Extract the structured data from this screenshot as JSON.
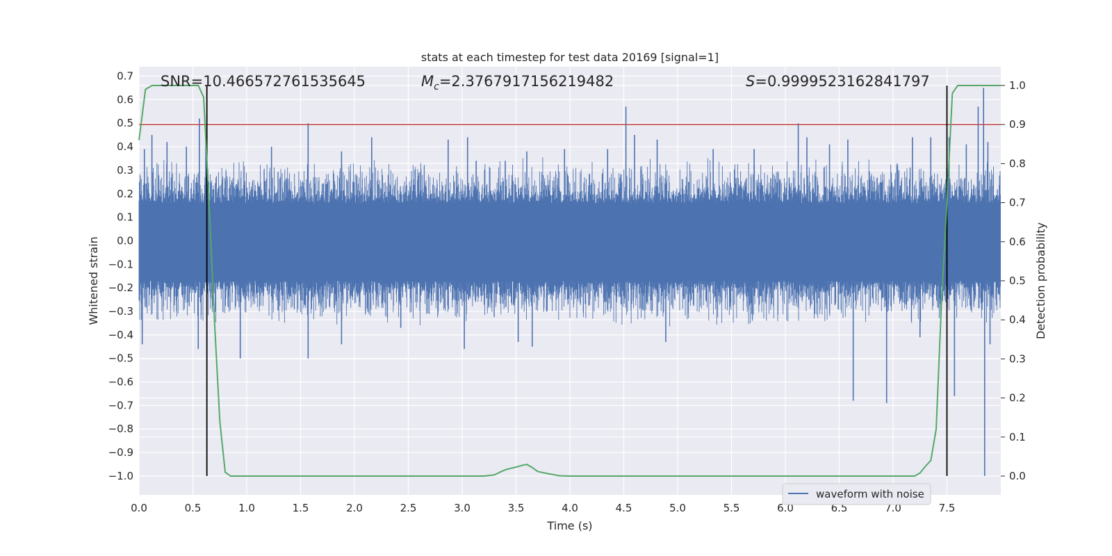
{
  "chart_data": {
    "type": "line",
    "title": "stats at each timestep for test data 20169 [signal=1]",
    "xlabel": "Time (s)",
    "ylabel": "Whitened strain",
    "y2label": "Detection probability",
    "xlim": [
      0.0,
      8.0
    ],
    "ylim": [
      -1.08,
      0.74
    ],
    "y2lim": [
      -0.048,
      1.048
    ],
    "xticks": [
      "0.0",
      "0.5",
      "1.0",
      "1.5",
      "2.0",
      "2.5",
      "3.0",
      "3.5",
      "4.0",
      "4.5",
      "5.0",
      "5.5",
      "6.0",
      "6.5",
      "7.0",
      "7.5"
    ],
    "yticks": [
      "0.7",
      "0.6",
      "0.5",
      "0.4",
      "0.3",
      "0.2",
      "0.1",
      "0.0",
      "−0.1",
      "−0.2",
      "−0.3",
      "−0.4",
      "−0.5",
      "−0.6",
      "−0.7",
      "−0.8",
      "−0.9",
      "−1.0"
    ],
    "y2ticks": [
      "1.0",
      "0.9",
      "0.8",
      "0.7",
      "0.6",
      "0.5",
      "0.4",
      "0.3",
      "0.2",
      "0.1",
      "0.0"
    ],
    "annotations": {
      "snr": "SNR=10.466572761535645",
      "mc": "=2.3767917156219482",
      "mc_symbol": "M",
      "mc_sub": "c",
      "s": "=0.9999523162841797",
      "s_symbol": "S"
    },
    "legend": {
      "location": "lower-right",
      "entries": [
        "waveform with noise"
      ]
    },
    "grid": true,
    "colors": {
      "waveform": "#4c72b0",
      "probability": "#55a868",
      "threshold": "#c44e52",
      "marker": "#000000",
      "background": "#eaeaf2",
      "grid": "#ffffff"
    },
    "series": [
      {
        "name": "waveform with noise",
        "axis": "left",
        "description_values": "noise band roughly ±0.16, spikes to ±0.5",
        "spikes": [
          [
            0.03,
            -0.44
          ],
          [
            0.05,
            0.39
          ],
          [
            0.12,
            0.45
          ],
          [
            0.26,
            0.42
          ],
          [
            0.44,
            0.4
          ],
          [
            0.56,
            0.52
          ],
          [
            0.55,
            -0.46
          ],
          [
            0.62,
            0.44
          ],
          [
            0.94,
            -0.5
          ],
          [
            1.23,
            0.4
          ],
          [
            1.57,
            0.5
          ],
          [
            1.57,
            -0.5
          ],
          [
            1.88,
            0.38
          ],
          [
            1.88,
            -0.44
          ],
          [
            2.16,
            0.44
          ],
          [
            2.43,
            -0.37
          ],
          [
            2.87,
            0.43
          ],
          [
            3.05,
            0.44
          ],
          [
            3.02,
            -0.46
          ],
          [
            3.13,
            0.34
          ],
          [
            3.4,
            0.34
          ],
          [
            3.52,
            -0.43
          ],
          [
            3.6,
            0.38
          ],
          [
            3.65,
            -0.45
          ],
          [
            3.95,
            0.39
          ],
          [
            4.35,
            0.39
          ],
          [
            4.52,
            0.57
          ],
          [
            4.6,
            0.45
          ],
          [
            4.81,
            0.43
          ],
          [
            4.89,
            -0.43
          ],
          [
            5.33,
            0.39
          ],
          [
            5.71,
            0.39
          ],
          [
            6.12,
            0.5
          ],
          [
            6.2,
            0.44
          ],
          [
            6.41,
            0.41
          ],
          [
            6.63,
            -0.68
          ],
          [
            6.58,
            0.43
          ],
          [
            6.94,
            -0.69
          ],
          [
            7.18,
            0.44
          ],
          [
            7.25,
            -0.41
          ],
          [
            7.35,
            0.44
          ],
          [
            7.52,
            0.44
          ],
          [
            7.57,
            -0.66
          ],
          [
            7.68,
            0.41
          ],
          [
            7.79,
            0.57
          ],
          [
            7.84,
            0.65
          ],
          [
            7.85,
            -1.0
          ],
          [
            7.88,
            0.42
          ],
          [
            7.9,
            -0.44
          ]
        ]
      },
      {
        "name": "",
        "axis": "right",
        "x": [
          0.0,
          0.06,
          0.12,
          0.2,
          0.3,
          0.4,
          0.5,
          0.55,
          0.6,
          0.65,
          0.7,
          0.75,
          0.8,
          0.85,
          0.9,
          1.0,
          1.5,
          2.0,
          2.5,
          3.0,
          3.2,
          3.3,
          3.35,
          3.4,
          3.45,
          3.5,
          3.55,
          3.6,
          3.65,
          3.7,
          3.8,
          3.9,
          4.0,
          4.5,
          5.0,
          5.5,
          6.0,
          6.5,
          7.0,
          7.2,
          7.25,
          7.3,
          7.35,
          7.4,
          7.45,
          7.5,
          7.55,
          7.6,
          7.65,
          7.7,
          7.8,
          7.9,
          8.0
        ],
        "values": [
          0.86,
          0.99,
          1.0,
          1.0,
          1.0,
          1.0,
          1.0,
          1.0,
          0.97,
          0.7,
          0.4,
          0.14,
          0.01,
          0.0,
          0.0,
          0.0,
          0.0,
          0.0,
          0.0,
          0.0,
          0.0,
          0.003,
          0.01,
          0.016,
          0.02,
          0.023,
          0.027,
          0.03,
          0.022,
          0.012,
          0.006,
          0.001,
          0.0,
          0.0,
          0.0,
          0.0,
          0.0,
          0.0,
          0.0,
          0.0,
          0.008,
          0.025,
          0.04,
          0.12,
          0.45,
          0.7,
          0.98,
          1.0,
          1.0,
          1.0,
          1.0,
          1.0,
          1.0
        ]
      }
    ],
    "hlines": [
      {
        "axis": "right",
        "y": 0.9
      }
    ],
    "vlines": [
      {
        "x": 0.63,
        "y0": -1.0,
        "y1": 0.66
      },
      {
        "x": 7.5,
        "y0": -1.0,
        "y1": 0.66
      }
    ]
  }
}
